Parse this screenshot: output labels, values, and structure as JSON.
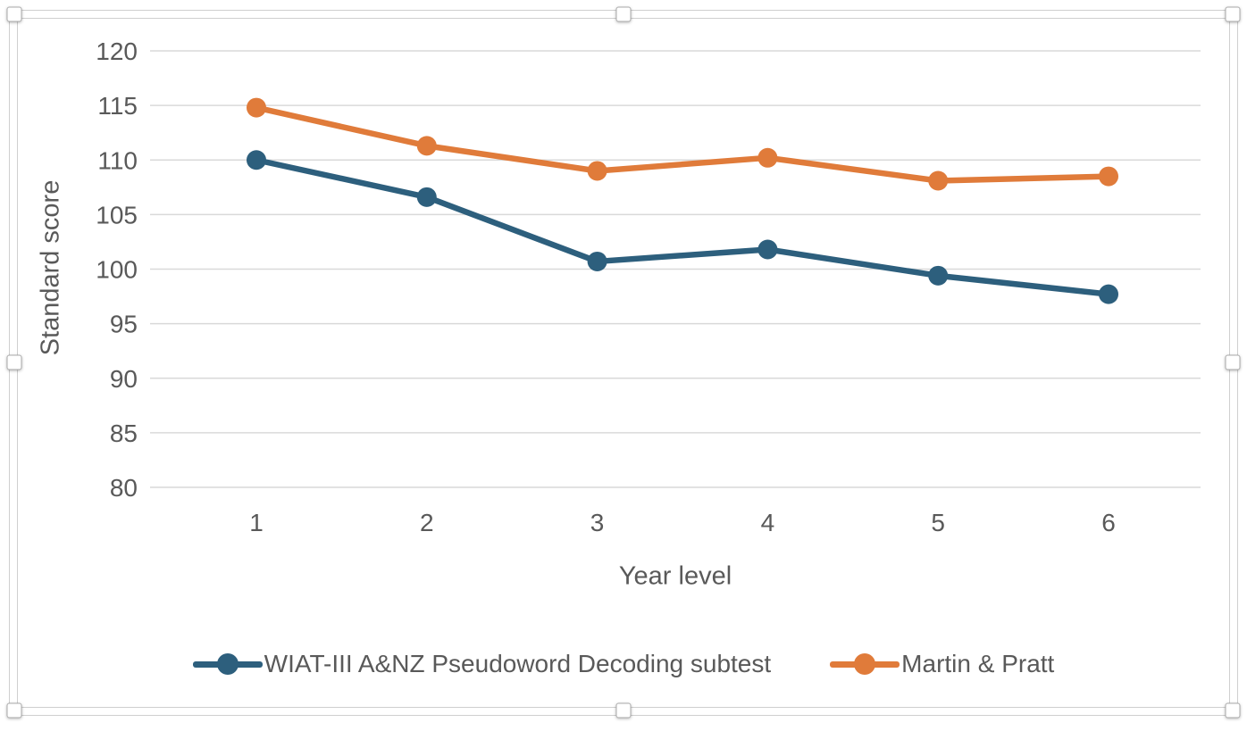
{
  "chart_data": {
    "type": "line",
    "title": "",
    "xlabel": "Year level",
    "ylabel": "Standard score",
    "categories": [
      "1",
      "2",
      "3",
      "4",
      "5",
      "6"
    ],
    "series": [
      {
        "name": "WIAT-III A&NZ Pseudoword Decoding subtest",
        "color": "#2d5f7d",
        "values": [
          110.0,
          106.6,
          100.7,
          101.8,
          99.4,
          97.7
        ]
      },
      {
        "name": "Martin & Pratt",
        "color": "#e07b3a",
        "values": [
          114.8,
          111.3,
          109.0,
          110.2,
          108.1,
          108.5
        ]
      }
    ],
    "ylim": [
      80,
      120
    ],
    "yticks": [
      80,
      85,
      90,
      95,
      100,
      105,
      110,
      115,
      120
    ],
    "grid": true,
    "legend_position": "bottom",
    "gridline_color": "#d9d9d9",
    "text_color": "#595959",
    "marker": "circle"
  },
  "selection": {
    "state": "chart selected",
    "handles": [
      "top-left",
      "top-center",
      "top-right",
      "left-middle",
      "right-middle",
      "bottom-left",
      "bottom-center",
      "bottom-right"
    ]
  }
}
